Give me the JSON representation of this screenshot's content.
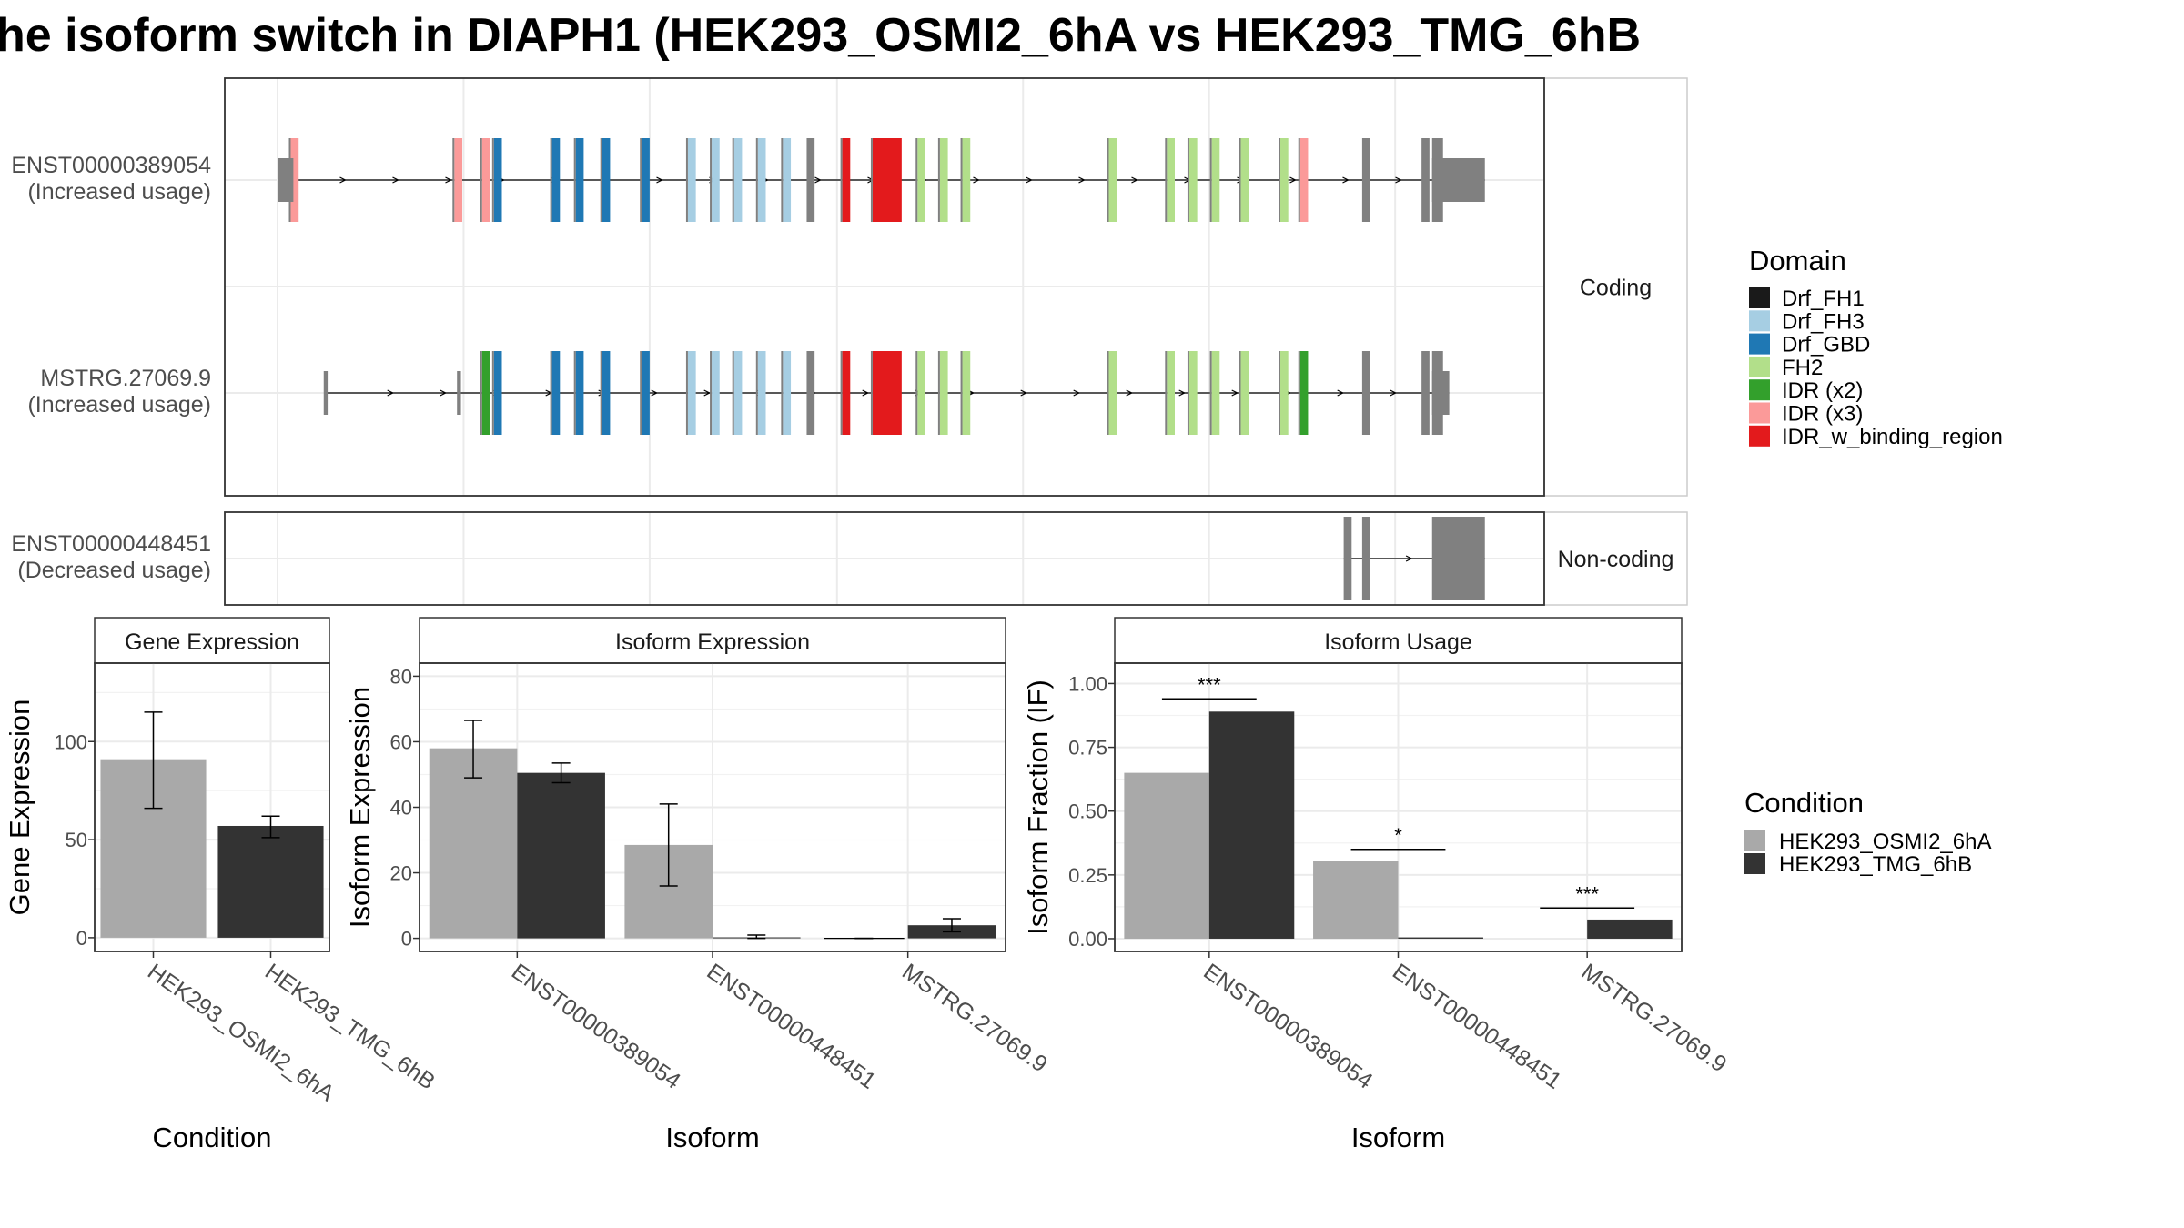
{
  "title": "he isoform switch in DIAPH1 (HEK293_OSMI2_6hA vs HEK293_TMG_6hB",
  "colors": {
    "condition_a": "#a9a9a9",
    "condition_b": "#333333",
    "intron_exon": "#808080"
  },
  "structure": {
    "panels": [
      {
        "strip": "Coding",
        "tracks": [
          {
            "name": "ENST00000389054",
            "note": "(Increased usage)",
            "tx_start": 0.04,
            "tx_end": 0.955,
            "utr5": [
              [
                0.04,
                0.052
              ]
            ],
            "utr3": [
              [
                0.915,
                0.955
              ]
            ],
            "exons": [
              {
                "x": 0.053,
                "domain": "IDR (x3)"
              },
              {
                "x": 0.177,
                "domain": "IDR (x3)"
              },
              {
                "x": 0.198,
                "domain": "IDR (x3)"
              },
              {
                "x": 0.207,
                "domain": "Drf_GBD"
              },
              {
                "x": 0.251,
                "domain": "Drf_GBD"
              },
              {
                "x": 0.269,
                "domain": "Drf_GBD"
              },
              {
                "x": 0.289,
                "domain": "Drf_GBD"
              },
              {
                "x": 0.319,
                "domain": "Drf_GBD"
              },
              {
                "x": 0.354,
                "domain": "Drf_FH3"
              },
              {
                "x": 0.372,
                "domain": "Drf_FH3"
              },
              {
                "x": 0.389,
                "domain": "Drf_FH3"
              },
              {
                "x": 0.407,
                "domain": "Drf_FH3"
              },
              {
                "x": 0.426,
                "domain": "Drf_FH3"
              },
              {
                "x": 0.444,
                "domain": null
              },
              {
                "x": 0.471,
                "domain": "IDR_w_binding_region"
              },
              {
                "x": 0.502,
                "domain": "IDR_w_binding_region",
                "w": 0.022
              },
              {
                "x": 0.528,
                "domain": "FH2"
              },
              {
                "x": 0.545,
                "domain": "FH2"
              },
              {
                "x": 0.562,
                "domain": "FH2"
              },
              {
                "x": 0.673,
                "domain": "FH2"
              },
              {
                "x": 0.717,
                "domain": "FH2"
              },
              {
                "x": 0.734,
                "domain": "FH2"
              },
              {
                "x": 0.751,
                "domain": "FH2"
              },
              {
                "x": 0.773,
                "domain": "FH2"
              },
              {
                "x": 0.803,
                "domain": "FH2"
              },
              {
                "x": 0.818,
                "domain": "IDR (x3)"
              },
              {
                "x": 0.865,
                "domain": null
              },
              {
                "x": 0.91,
                "domain": null
              }
            ]
          },
          {
            "name": "MSTRG.27069.9",
            "note": "(Increased usage)",
            "tx_start": 0.076,
            "tx_end": 0.928,
            "utr5": [
              [
                0.075,
                0.078
              ],
              [
                0.176,
                0.179
              ]
            ],
            "utr3": [
              [
                0.915,
                0.928
              ]
            ],
            "exons": [
              {
                "x": 0.198,
                "domain": "IDR (x2)"
              },
              {
                "x": 0.207,
                "domain": "Drf_GBD"
              },
              {
                "x": 0.251,
                "domain": "Drf_GBD"
              },
              {
                "x": 0.269,
                "domain": "Drf_GBD"
              },
              {
                "x": 0.289,
                "domain": "Drf_GBD"
              },
              {
                "x": 0.319,
                "domain": "Drf_GBD"
              },
              {
                "x": 0.354,
                "domain": "Drf_FH3"
              },
              {
                "x": 0.372,
                "domain": "Drf_FH3"
              },
              {
                "x": 0.389,
                "domain": "Drf_FH3"
              },
              {
                "x": 0.407,
                "domain": "Drf_FH3"
              },
              {
                "x": 0.426,
                "domain": "Drf_FH3"
              },
              {
                "x": 0.444,
                "domain": null
              },
              {
                "x": 0.471,
                "domain": "IDR_w_binding_region"
              },
              {
                "x": 0.502,
                "domain": "IDR_w_binding_region",
                "w": 0.022
              },
              {
                "x": 0.528,
                "domain": "FH2"
              },
              {
                "x": 0.545,
                "domain": "FH2"
              },
              {
                "x": 0.562,
                "domain": "FH2"
              },
              {
                "x": 0.673,
                "domain": "FH2"
              },
              {
                "x": 0.717,
                "domain": "FH2"
              },
              {
                "x": 0.734,
                "domain": "FH2"
              },
              {
                "x": 0.751,
                "domain": "FH2"
              },
              {
                "x": 0.773,
                "domain": "FH2"
              },
              {
                "x": 0.803,
                "domain": "FH2"
              },
              {
                "x": 0.818,
                "domain": "IDR (x2)"
              },
              {
                "x": 0.865,
                "domain": null
              },
              {
                "x": 0.91,
                "domain": null
              }
            ]
          }
        ]
      },
      {
        "strip": "Non-coding",
        "tracks": [
          {
            "name": "ENST00000448451",
            "note": "(Decreased usage)",
            "tx_start": 0.848,
            "tx_end": 0.955,
            "noncoding_exons": [
              [
                0.848,
                0.854
              ],
              [
                0.862,
                0.868
              ],
              [
                0.915,
                0.955
              ]
            ]
          }
        ]
      }
    ]
  },
  "domain_legend": {
    "title": "Domain",
    "items": [
      {
        "label": "Drf_FH1",
        "color": "#1a1a1a"
      },
      {
        "label": "Drf_FH3",
        "color": "#a6cee3"
      },
      {
        "label": "Drf_GBD",
        "color": "#1f78b4"
      },
      {
        "label": "FH2",
        "color": "#b2df8a"
      },
      {
        "label": "IDR (x2)",
        "color": "#33a02c"
      },
      {
        "label": "IDR (x3)",
        "color": "#fb9a99"
      },
      {
        "label": "IDR_w_binding_region",
        "color": "#e31a1c"
      }
    ]
  },
  "condition_legend": {
    "title": "Condition",
    "items": [
      {
        "label": "HEK293_OSMI2_6hA",
        "color": "#a9a9a9"
      },
      {
        "label": "HEK293_TMG_6hB",
        "color": "#333333"
      }
    ]
  },
  "chart_data": [
    {
      "type": "bar",
      "title": "Gene Expression",
      "xlabel": "Condition",
      "ylabel": "Gene Expression",
      "categories": [
        "HEK293_OSMI2_6hA",
        "HEK293_TMG_6hB"
      ],
      "values": [
        91,
        57
      ],
      "errors": [
        [
          66,
          115
        ],
        [
          51,
          62
        ]
      ],
      "ylim": [
        -7,
        140
      ],
      "yticks": [
        0,
        50,
        100
      ]
    },
    {
      "type": "bar",
      "title": "Isoform Expression",
      "xlabel": "Isoform",
      "ylabel": "Isoform Expression",
      "categories": [
        "ENST00000389054",
        "ENST00000448451",
        "MSTRG.27069.9"
      ],
      "series": [
        {
          "name": "HEK293_OSMI2_6hA",
          "values": [
            58,
            28.5,
            0
          ],
          "errors": [
            [
              49,
              66.5
            ],
            [
              16,
              41
            ],
            [
              0,
              0
            ]
          ]
        },
        {
          "name": "HEK293_TMG_6hB",
          "values": [
            50.5,
            0.3,
            4
          ],
          "errors": [
            [
              47.5,
              53.5
            ],
            [
              0,
              1
            ],
            [
              2,
              6
            ]
          ]
        }
      ],
      "ylim": [
        -4,
        84
      ],
      "yticks": [
        0,
        20,
        40,
        60,
        80
      ]
    },
    {
      "type": "bar",
      "title": "Isoform Usage",
      "xlabel": "Isoform",
      "ylabel": "Isoform Fraction (IF)",
      "categories": [
        "ENST00000389054",
        "ENST00000448451",
        "MSTRG.27069.9"
      ],
      "series": [
        {
          "name": "HEK293_OSMI2_6hA",
          "values": [
            0.65,
            0.305,
            0
          ]
        },
        {
          "name": "HEK293_TMG_6hB",
          "values": [
            0.89,
            0.005,
            0.075
          ]
        }
      ],
      "significance": [
        {
          "label": "***",
          "y": 0.94
        },
        {
          "label": "*",
          "y": 0.35
        },
        {
          "label": "***",
          "y": 0.12
        }
      ],
      "ylim": [
        -0.05,
        1.08
      ],
      "yticks": [
        "0.00",
        "0.25",
        "0.50",
        "0.75",
        "1.00"
      ]
    }
  ]
}
